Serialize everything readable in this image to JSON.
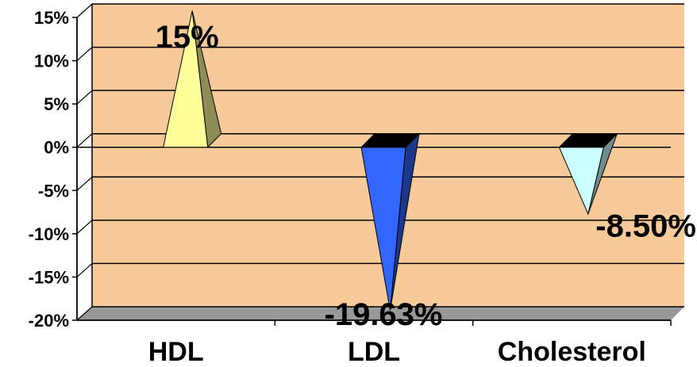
{
  "chart_data": {
    "type": "bar",
    "style": "3d-cone",
    "categories": [
      "HDL",
      "LDL",
      "Cholesterol"
    ],
    "values": [
      15,
      -19.63,
      -8.5
    ],
    "data_labels": [
      "15%",
      "-19.63%",
      "-8.50%"
    ],
    "ylim": [
      -20,
      15
    ],
    "y_ticks": [
      15,
      10,
      5,
      0,
      -5,
      -10,
      -15,
      -20
    ],
    "y_tick_labels": [
      "15%",
      "10%",
      "5%",
      "0%",
      "-5%",
      "-10%",
      "-15%",
      "-20%"
    ],
    "grid": true,
    "legend": "none",
    "colors": {
      "plot_background": "#F8C999",
      "floor": "#999999",
      "series": [
        "#FFFF99",
        "#3366FF",
        "#CCFFFF"
      ]
    }
  }
}
